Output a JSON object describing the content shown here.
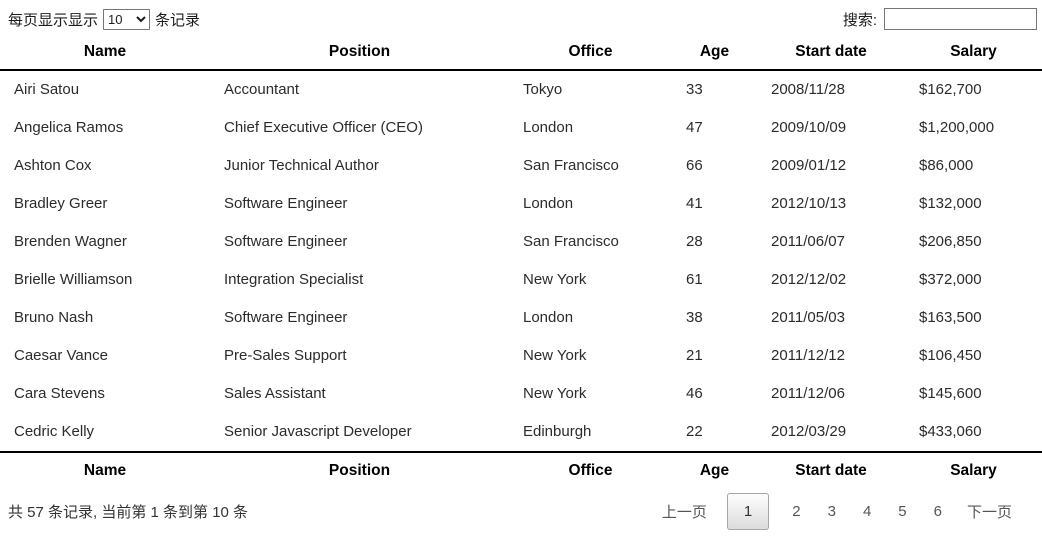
{
  "controls": {
    "length_label_before": "每页显示显示",
    "length_value": "10",
    "length_label_after": "条记录",
    "search_label": "搜索:",
    "search_value": ""
  },
  "table": {
    "columns": [
      "Name",
      "Position",
      "Office",
      "Age",
      "Start date",
      "Salary"
    ],
    "rows": [
      [
        "Airi Satou",
        "Accountant",
        "Tokyo",
        "33",
        "2008/11/28",
        "$162,700"
      ],
      [
        "Angelica Ramos",
        "Chief Executive Officer (CEO)",
        "London",
        "47",
        "2009/10/09",
        "$1,200,000"
      ],
      [
        "Ashton Cox",
        "Junior Technical Author",
        "San Francisco",
        "66",
        "2009/01/12",
        "$86,000"
      ],
      [
        "Bradley Greer",
        "Software Engineer",
        "London",
        "41",
        "2012/10/13",
        "$132,000"
      ],
      [
        "Brenden Wagner",
        "Software Engineer",
        "San Francisco",
        "28",
        "2011/06/07",
        "$206,850"
      ],
      [
        "Brielle Williamson",
        "Integration Specialist",
        "New York",
        "61",
        "2012/12/02",
        "$372,000"
      ],
      [
        "Bruno Nash",
        "Software Engineer",
        "London",
        "38",
        "2011/05/03",
        "$163,500"
      ],
      [
        "Caesar Vance",
        "Pre-Sales Support",
        "New York",
        "21",
        "2011/12/12",
        "$106,450"
      ],
      [
        "Cara Stevens",
        "Sales Assistant",
        "New York",
        "46",
        "2011/12/06",
        "$145,600"
      ],
      [
        "Cedric Kelly",
        "Senior Javascript Developer",
        "Edinburgh",
        "22",
        "2012/03/29",
        "$433,060"
      ]
    ]
  },
  "footer": {
    "info": "共 57 条记录, 当前第 1 条到第 10 条",
    "pagination": {
      "previous": "上一页",
      "pages": [
        "1",
        "2",
        "3",
        "4",
        "5",
        "6"
      ],
      "current": "1",
      "next": "下一页"
    }
  },
  "colors": {
    "header_rule": "#000000",
    "control_border": "#767676",
    "body_text": "#2b2b2b",
    "header_text": "#000000",
    "page_link_text": "#555555",
    "page_current_border": "#a6a6a6",
    "page_current_bg_bottom": "#dcdcdc"
  }
}
